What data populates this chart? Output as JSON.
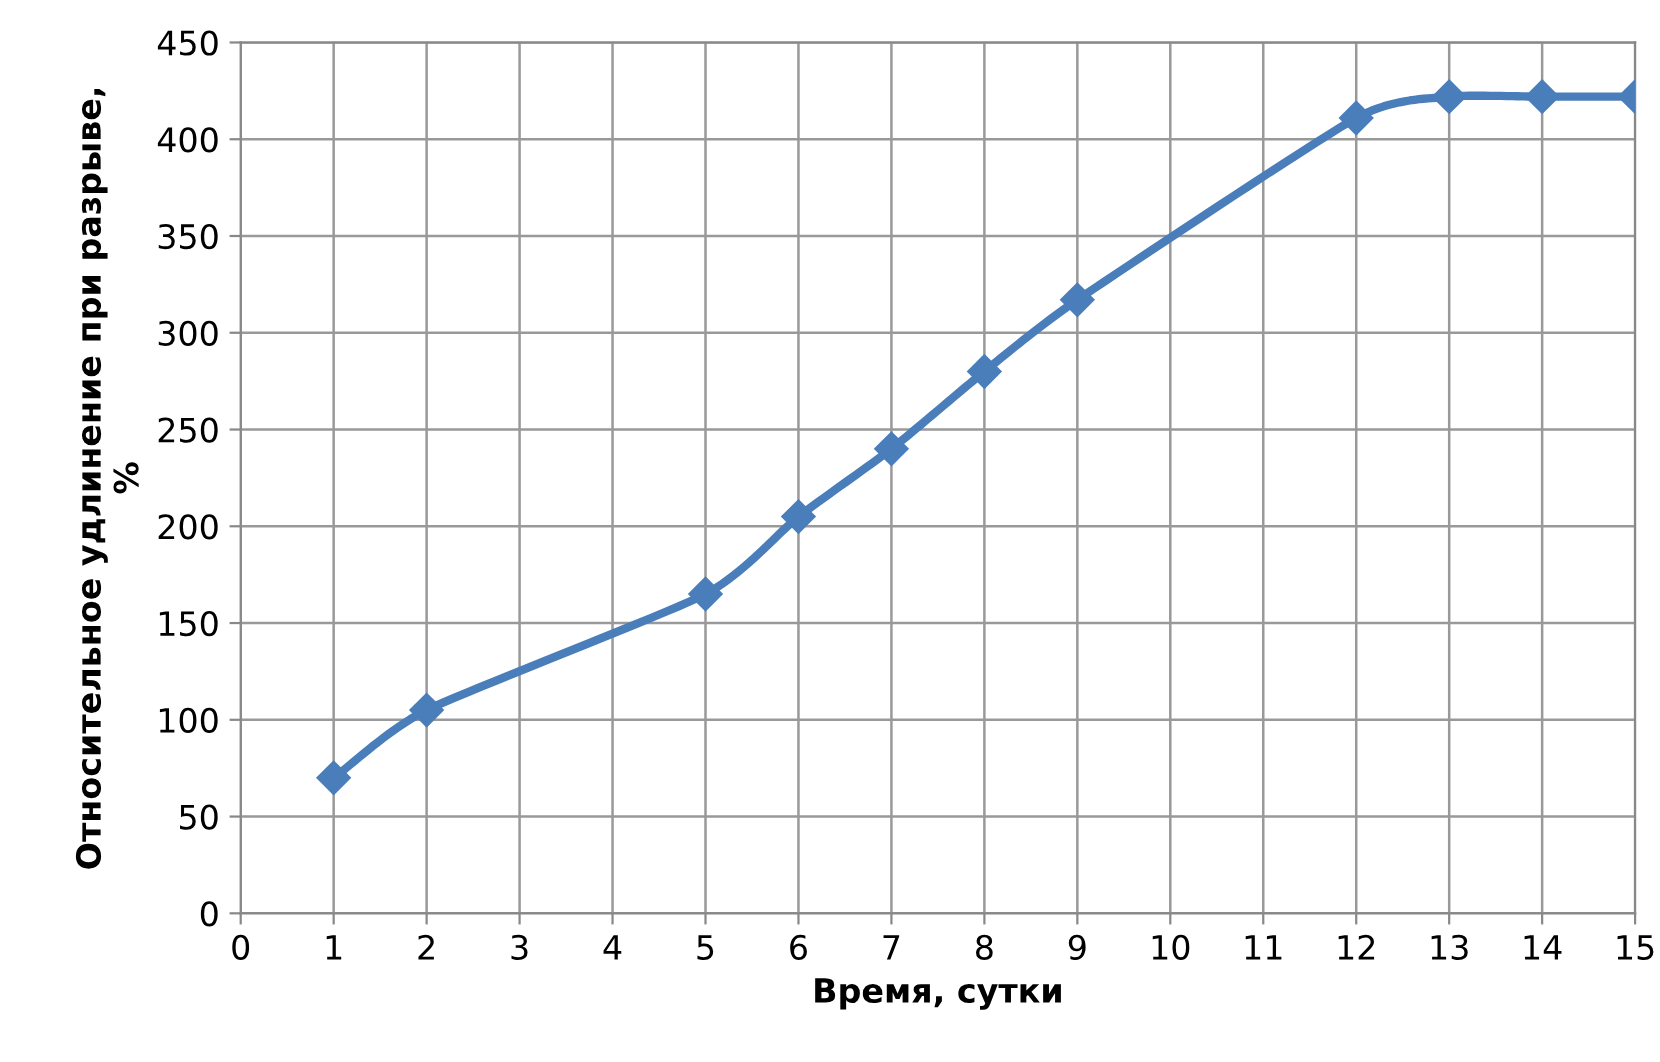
{
  "chart_data": {
    "type": "line",
    "xlabel": "Время, сутки",
    "ylabel": "Относительное удлинение при разрыве,\n%",
    "x": [
      1,
      2,
      5,
      6,
      7,
      8,
      9,
      12,
      13,
      14,
      15
    ],
    "series": [
      {
        "color": "#4a7ebb",
        "values": [
          70,
          105,
          165,
          205,
          240,
          280,
          317,
          411,
          422,
          422,
          422
        ]
      }
    ],
    "xlim": [
      0,
      15
    ],
    "xticks": [
      0,
      1,
      2,
      3,
      4,
      5,
      6,
      7,
      8,
      9,
      10,
      11,
      12,
      13,
      14,
      15
    ],
    "ylim": [
      0,
      450
    ],
    "yticks": [
      0,
      50,
      100,
      150,
      200,
      250,
      300,
      350,
      400,
      450
    ],
    "grid": true,
    "marker": "diamond",
    "line_style": "solid",
    "legend": false
  }
}
